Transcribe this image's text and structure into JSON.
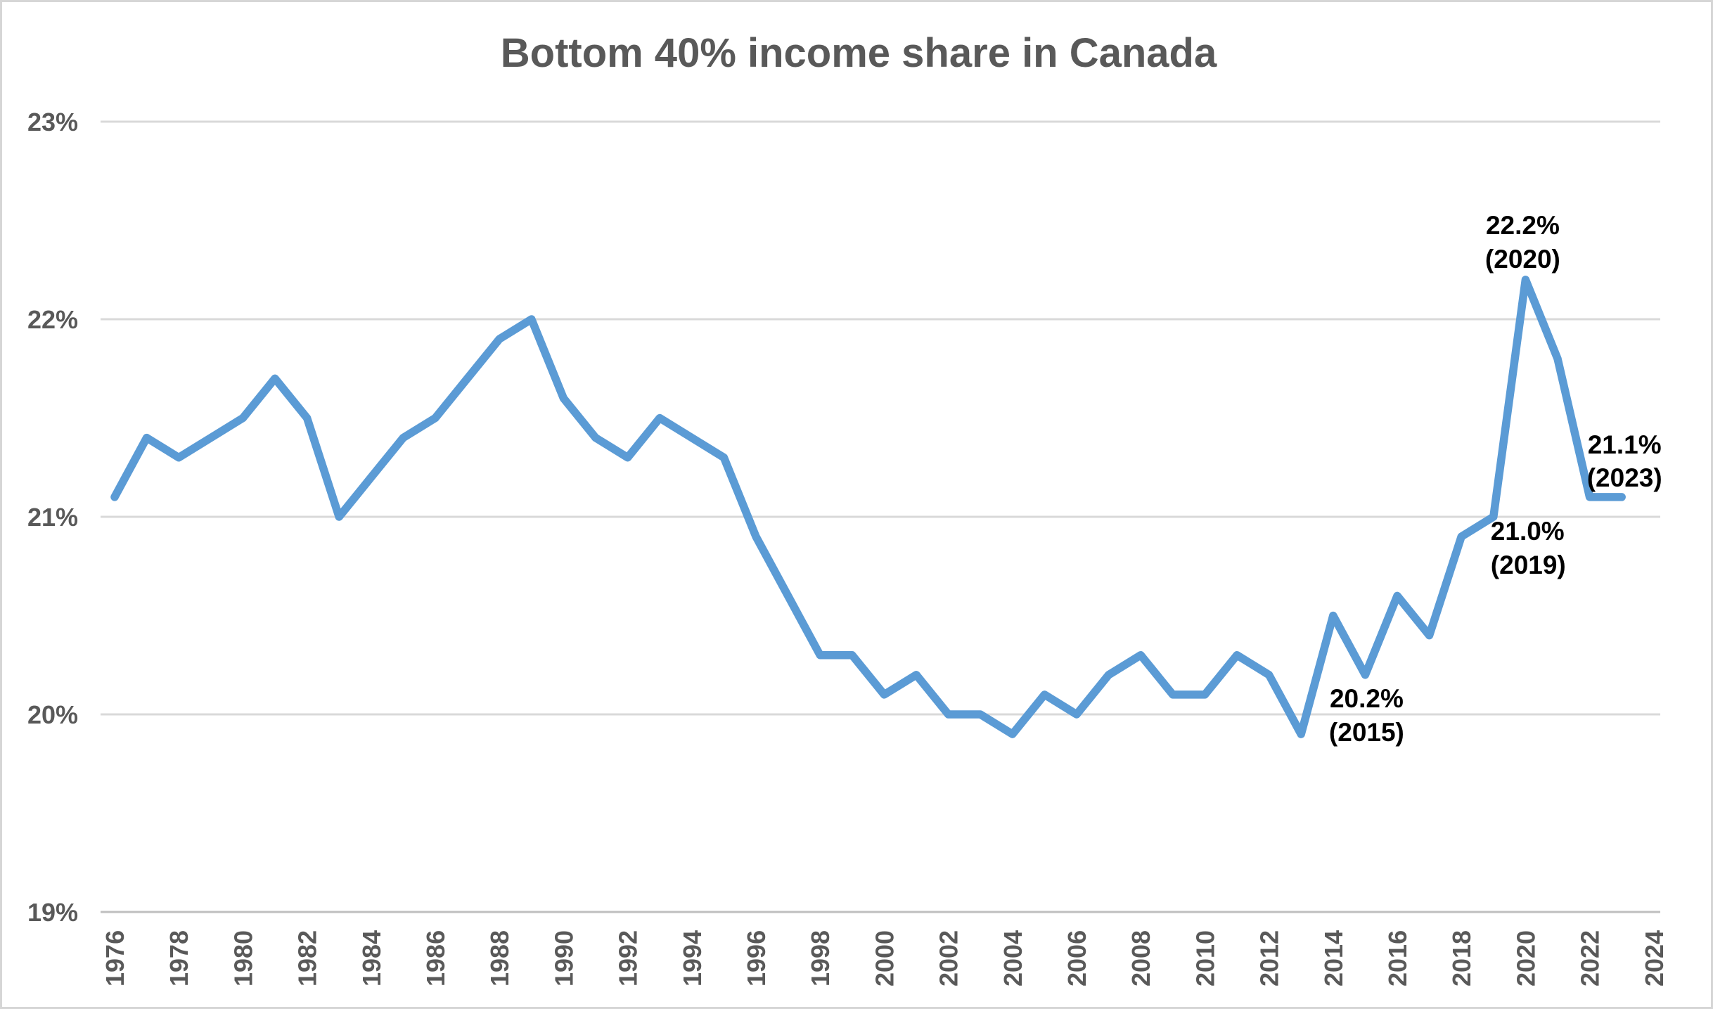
{
  "chart_data": {
    "type": "line",
    "title": "Bottom 40% income share in Canada",
    "x": [
      1976,
      1977,
      1978,
      1979,
      1980,
      1981,
      1982,
      1983,
      1984,
      1985,
      1986,
      1987,
      1988,
      1989,
      1990,
      1991,
      1992,
      1993,
      1994,
      1995,
      1996,
      1997,
      1998,
      1999,
      2000,
      2001,
      2002,
      2003,
      2004,
      2005,
      2006,
      2007,
      2008,
      2009,
      2010,
      2011,
      2012,
      2013,
      2014,
      2015,
      2016,
      2017,
      2018,
      2019,
      2020,
      2021,
      2022,
      2023
    ],
    "values": [
      21.1,
      21.4,
      21.3,
      21.4,
      21.5,
      21.7,
      21.5,
      21.0,
      21.2,
      21.4,
      21.5,
      21.7,
      21.9,
      22.0,
      21.6,
      21.4,
      21.3,
      21.5,
      21.4,
      21.3,
      20.9,
      20.6,
      20.3,
      20.3,
      20.1,
      20.2,
      20.0,
      20.0,
      19.9,
      20.1,
      20.0,
      20.2,
      20.3,
      20.1,
      20.1,
      20.3,
      20.2,
      19.9,
      20.5,
      20.2,
      20.6,
      20.4,
      20.9,
      21.0,
      22.2,
      21.8,
      21.1,
      21.1
    ],
    "series_name": "Bottom 40% income share",
    "xlabel": "",
    "ylabel": "",
    "ylim": [
      19,
      23
    ],
    "grid": "horizontal",
    "legend": "none",
    "y_ticks": [
      {
        "value": 23,
        "label": "23%"
      },
      {
        "value": 22,
        "label": "22%"
      },
      {
        "value": 21,
        "label": "21%"
      },
      {
        "value": 20,
        "label": "20%"
      },
      {
        "value": 19,
        "label": "19%"
      }
    ],
    "x_ticks": [
      {
        "value": 1976,
        "label": "1976"
      },
      {
        "value": 1978,
        "label": "1978"
      },
      {
        "value": 1980,
        "label": "1980"
      },
      {
        "value": 1982,
        "label": "1982"
      },
      {
        "value": 1984,
        "label": "1984"
      },
      {
        "value": 1986,
        "label": "1986"
      },
      {
        "value": 1988,
        "label": "1988"
      },
      {
        "value": 1990,
        "label": "1990"
      },
      {
        "value": 1992,
        "label": "1992"
      },
      {
        "value": 1994,
        "label": "1994"
      },
      {
        "value": 1996,
        "label": "1996"
      },
      {
        "value": 1998,
        "label": "1998"
      },
      {
        "value": 2000,
        "label": "2000"
      },
      {
        "value": 2002,
        "label": "2002"
      },
      {
        "value": 2004,
        "label": "2004"
      },
      {
        "value": 2006,
        "label": "2006"
      },
      {
        "value": 2008,
        "label": "2008"
      },
      {
        "value": 2010,
        "label": "2010"
      },
      {
        "value": 2012,
        "label": "2012"
      },
      {
        "value": 2014,
        "label": "2014"
      },
      {
        "value": 2016,
        "label": "2016"
      },
      {
        "value": 2018,
        "label": "2018"
      },
      {
        "value": 2020,
        "label": "2020"
      },
      {
        "value": 2022,
        "label": "2022"
      },
      {
        "value": 2024,
        "label": "2024"
      }
    ],
    "annotations": [
      {
        "year": 2015,
        "value": 20.2,
        "line1": "20.2%",
        "line2": "(2015)",
        "placement": "below"
      },
      {
        "year": 2019,
        "value": 21.0,
        "line1": "21.0%",
        "line2": "(2019)",
        "placement": "below-right"
      },
      {
        "year": 2020,
        "value": 22.2,
        "line1": "22.2%",
        "line2": "(2020)",
        "placement": "above"
      },
      {
        "year": 2023,
        "value": 21.1,
        "line1": "21.1%",
        "line2": "(2023)",
        "placement": "above-end"
      }
    ]
  },
  "colors": {
    "line": "#5B9BD5",
    "title_text": "#595959",
    "axis_text": "#595959",
    "gridline": "#D9D9D9",
    "axis_line": "#BFBFBF",
    "annotation_text": "#000000",
    "background": "#FFFFFF"
  }
}
